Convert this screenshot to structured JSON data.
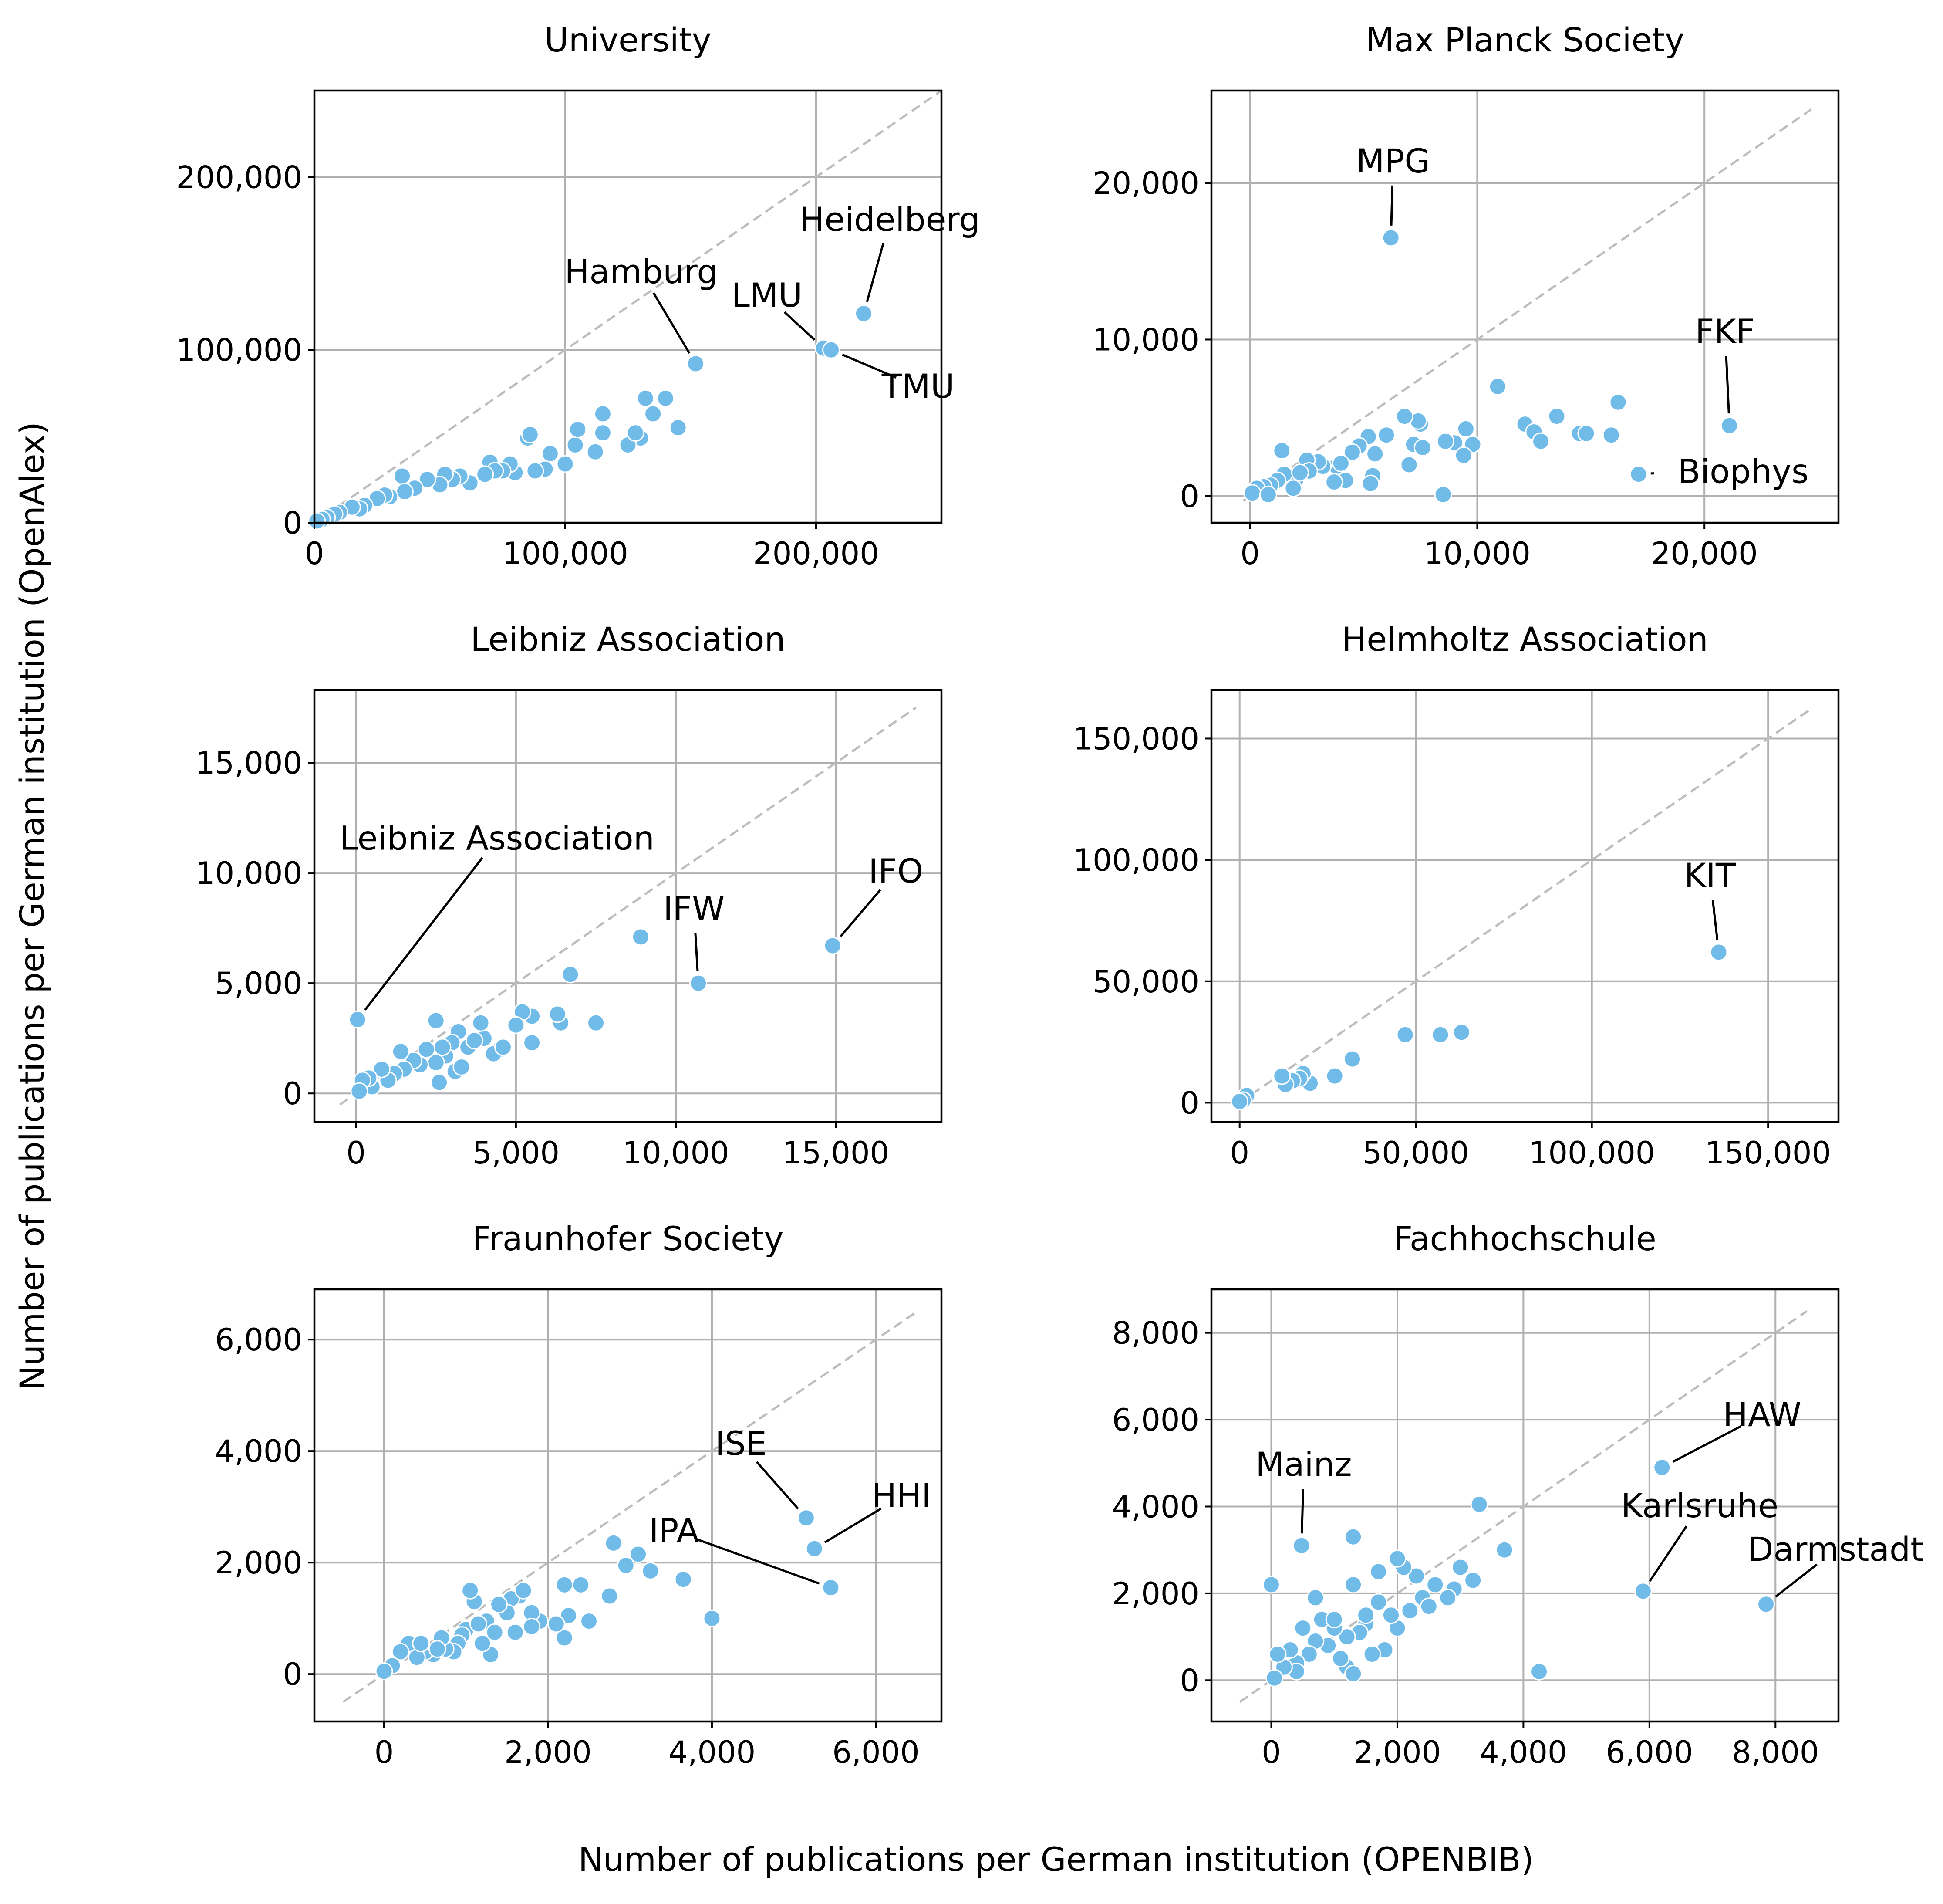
{
  "figure": {
    "xlabel": "Number of publications per German institution (OPENBIB)",
    "ylabel": "Number of publications per German institution (OpenAlex)",
    "point_color": "#71bbe9"
  },
  "chart_data": [
    {
      "type": "scatter",
      "title": "University",
      "xlim": [
        0,
        250000
      ],
      "ylim": [
        0,
        250000
      ],
      "xticks": [
        0,
        100000,
        200000
      ],
      "xtick_labels": [
        "0",
        "100,000",
        "200,000"
      ],
      "yticks": [
        0,
        100000,
        200000
      ],
      "ytick_labels": [
        "0",
        "100,000",
        "200,000"
      ],
      "grid": true,
      "diagonal": [
        0,
        250000
      ],
      "annotations": [
        {
          "label": "Heidelberg",
          "x": 219000,
          "y": 121000
        },
        {
          "label": "Hamburg",
          "x": 152000,
          "y": 92000
        },
        {
          "label": "LMU",
          "x": 203000,
          "y": 101000
        },
        {
          "label": "TMU",
          "x": 206000,
          "y": 100000
        }
      ],
      "points": [
        [
          219000,
          121000
        ],
        [
          152000,
          92000
        ],
        [
          203000,
          101000
        ],
        [
          206000,
          100000
        ],
        [
          140000,
          72000
        ],
        [
          132000,
          72000
        ],
        [
          135000,
          63000
        ],
        [
          130000,
          49000
        ],
        [
          145000,
          55000
        ],
        [
          125000,
          45000
        ],
        [
          128000,
          52000
        ],
        [
          115000,
          63000
        ],
        [
          112000,
          41000
        ],
        [
          115000,
          52000
        ],
        [
          104000,
          45000
        ],
        [
          105000,
          54000
        ],
        [
          100000,
          34000
        ],
        [
          94000,
          40000
        ],
        [
          92000,
          31000
        ],
        [
          88000,
          30000
        ],
        [
          85000,
          49000
        ],
        [
          86000,
          51000
        ],
        [
          80000,
          29000
        ],
        [
          78000,
          34000
        ],
        [
          75000,
          30000
        ],
        [
          70000,
          35000
        ],
        [
          72000,
          30000
        ],
        [
          68000,
          28000
        ],
        [
          62000,
          23000
        ],
        [
          58000,
          27000
        ],
        [
          55000,
          25000
        ],
        [
          52000,
          28000
        ],
        [
          50000,
          22000
        ],
        [
          45000,
          25000
        ],
        [
          40000,
          20000
        ],
        [
          35000,
          27000
        ],
        [
          36000,
          18000
        ],
        [
          30000,
          15000
        ],
        [
          28000,
          16000
        ],
        [
          25000,
          14000
        ],
        [
          20000,
          10000
        ],
        [
          18000,
          8000
        ],
        [
          15000,
          9000
        ],
        [
          10000,
          6000
        ],
        [
          8000,
          5000
        ],
        [
          5000,
          3000
        ],
        [
          3000,
          2000
        ],
        [
          1000,
          1000
        ]
      ]
    },
    {
      "type": "scatter",
      "title": "Max Planck Society",
      "xlim": [
        -1700,
        25900
      ],
      "ylim": [
        -1700,
        25900
      ],
      "xticks": [
        0,
        10000,
        20000
      ],
      "xtick_labels": [
        "0",
        "10,000",
        "20,000"
      ],
      "yticks": [
        0,
        10000,
        20000
      ],
      "ytick_labels": [
        "0",
        "10,000",
        "20,000"
      ],
      "grid": true,
      "diagonal": [
        -300,
        24700
      ],
      "annotations": [
        {
          "label": "MPG",
          "x": 6200,
          "y": 16500
        },
        {
          "label": "FKF",
          "x": 21100,
          "y": 4500
        },
        {
          "label": "Biophys",
          "x": 17100,
          "y": 1400
        }
      ],
      "points": [
        [
          6200,
          16500
        ],
        [
          21100,
          4500
        ],
        [
          17100,
          1400
        ],
        [
          10900,
          7000
        ],
        [
          16200,
          6000
        ],
        [
          13500,
          5100
        ],
        [
          12100,
          4600
        ],
        [
          12500,
          4100
        ],
        [
          12800,
          3500
        ],
        [
          14500,
          4000
        ],
        [
          14800,
          4000
        ],
        [
          15900,
          3900
        ],
        [
          9500,
          4300
        ],
        [
          9800,
          3300
        ],
        [
          9000,
          3400
        ],
        [
          9400,
          2600
        ],
        [
          8600,
          3500
        ],
        [
          8500,
          100
        ],
        [
          7500,
          4600
        ],
        [
          7400,
          4800
        ],
        [
          6800,
          5100
        ],
        [
          7200,
          3300
        ],
        [
          7600,
          3100
        ],
        [
          7000,
          2000
        ],
        [
          6000,
          3900
        ],
        [
          5500,
          2700
        ],
        [
          5200,
          3800
        ],
        [
          5400,
          1300
        ],
        [
          5300,
          800
        ],
        [
          4800,
          3200
        ],
        [
          4500,
          2800
        ],
        [
          4200,
          1000
        ],
        [
          3800,
          1900
        ],
        [
          3700,
          900
        ],
        [
          3200,
          1900
        ],
        [
          3000,
          2200
        ],
        [
          2500,
          2300
        ],
        [
          2600,
          1600
        ],
        [
          2000,
          1000
        ],
        [
          1900,
          500
        ],
        [
          1500,
          1400
        ],
        [
          1400,
          2900
        ],
        [
          1200,
          1000
        ],
        [
          900,
          700
        ],
        [
          600,
          600
        ],
        [
          300,
          500
        ],
        [
          100,
          200
        ],
        [
          800,
          100
        ],
        [
          2200,
          1500
        ],
        [
          4000,
          2100
        ]
      ]
    },
    {
      "type": "scatter",
      "title": "Leibniz Association",
      "xlim": [
        -1300,
        18300
      ],
      "ylim": [
        -1300,
        18300
      ],
      "xticks": [
        0,
        5000,
        10000,
        15000
      ],
      "xtick_labels": [
        "0",
        "5,000",
        "10,000",
        "15,000"
      ],
      "yticks": [
        0,
        5000,
        10000,
        15000
      ],
      "ytick_labels": [
        "0",
        "5,000",
        "10,000",
        "15,000"
      ],
      "grid": true,
      "diagonal": [
        -500,
        17500
      ],
      "annotations": [
        {
          "label": "Leibniz Association",
          "x": 50,
          "y": 3350
        },
        {
          "label": "IFW",
          "x": 10700,
          "y": 5000
        },
        {
          "label": "IFO",
          "x": 14900,
          "y": 6700
        }
      ],
      "points": [
        [
          50,
          3350
        ],
        [
          10700,
          5000
        ],
        [
          14900,
          6700
        ],
        [
          8900,
          7100
        ],
        [
          6700,
          5400
        ],
        [
          7500,
          3200
        ],
        [
          6400,
          3200
        ],
        [
          6300,
          3600
        ],
        [
          5500,
          2300
        ],
        [
          5500,
          3500
        ],
        [
          5200,
          3700
        ],
        [
          5000,
          3100
        ],
        [
          4500,
          2000
        ],
        [
          4300,
          1800
        ],
        [
          4000,
          2500
        ],
        [
          3900,
          3200
        ],
        [
          3500,
          2100
        ],
        [
          3200,
          2800
        ],
        [
          3100,
          1000
        ],
        [
          3000,
          2300
        ],
        [
          2800,
          1700
        ],
        [
          2700,
          2100
        ],
        [
          2500,
          3300
        ],
        [
          2500,
          1400
        ],
        [
          2600,
          500
        ],
        [
          2200,
          2000
        ],
        [
          2000,
          1300
        ],
        [
          1800,
          1500
        ],
        [
          1500,
          1100
        ],
        [
          1400,
          1900
        ],
        [
          1200,
          900
        ],
        [
          1000,
          600
        ],
        [
          800,
          1100
        ],
        [
          500,
          300
        ],
        [
          400,
          700
        ],
        [
          200,
          600
        ],
        [
          100,
          100
        ],
        [
          3300,
          1200
        ],
        [
          4600,
          2100
        ],
        [
          3700,
          2400
        ]
      ]
    },
    {
      "type": "scatter",
      "title": "Helmholtz Association",
      "xlim": [
        -8000,
        170000
      ],
      "ylim": [
        -8000,
        170000
      ],
      "xticks": [
        0,
        50000,
        100000,
        150000
      ],
      "xtick_labels": [
        "0",
        "50,000",
        "100,000",
        "150,000"
      ],
      "yticks": [
        0,
        50000,
        100000,
        150000
      ],
      "ytick_labels": [
        "0",
        "50,000",
        "100,000",
        "150,000"
      ],
      "grid": true,
      "diagonal": [
        0,
        162000
      ],
      "annotations": [
        {
          "label": "KIT",
          "x": 136000,
          "y": 62000
        }
      ],
      "points": [
        [
          136000,
          62000
        ],
        [
          63000,
          29000
        ],
        [
          57000,
          28000
        ],
        [
          47000,
          28000
        ],
        [
          32000,
          18000
        ],
        [
          27000,
          11000
        ],
        [
          20000,
          8000
        ],
        [
          18000,
          12000
        ],
        [
          17000,
          10000
        ],
        [
          15000,
          9000
        ],
        [
          13000,
          7500
        ],
        [
          12000,
          11000
        ],
        [
          2000,
          3000
        ],
        [
          1000,
          1000
        ],
        [
          0,
          500
        ]
      ]
    },
    {
      "type": "scatter",
      "title": "Fraunhofer Society",
      "xlim": [
        -850,
        6800
      ],
      "ylim": [
        -850,
        6900
      ],
      "xticks": [
        0,
        2000,
        4000,
        6000
      ],
      "xtick_labels": [
        "0",
        "2,000",
        "4,000",
        "6,000"
      ],
      "yticks": [
        0,
        2000,
        4000,
        6000
      ],
      "ytick_labels": [
        "0",
        "2,000",
        "4,000",
        "6,000"
      ],
      "grid": true,
      "diagonal": [
        -500,
        6500
      ],
      "annotations": [
        {
          "label": "ISE",
          "x": 5150,
          "y": 2800
        },
        {
          "label": "HHI",
          "x": 5250,
          "y": 2250
        },
        {
          "label": "IPA",
          "x": 5450,
          "y": 1550
        }
      ],
      "points": [
        [
          5150,
          2800
        ],
        [
          5250,
          2250
        ],
        [
          5450,
          1550
        ],
        [
          4000,
          1000
        ],
        [
          3650,
          1700
        ],
        [
          3250,
          1850
        ],
        [
          3100,
          2150
        ],
        [
          2950,
          1950
        ],
        [
          2800,
          2350
        ],
        [
          2750,
          1400
        ],
        [
          2500,
          950
        ],
        [
          2400,
          1600
        ],
        [
          2250,
          1050
        ],
        [
          2200,
          1600
        ],
        [
          2200,
          650
        ],
        [
          2100,
          900
        ],
        [
          1900,
          950
        ],
        [
          1800,
          1100
        ],
        [
          1800,
          850
        ],
        [
          1650,
          1400
        ],
        [
          1600,
          750
        ],
        [
          1550,
          1350
        ],
        [
          1500,
          1100
        ],
        [
          1400,
          1250
        ],
        [
          1300,
          350
        ],
        [
          1250,
          950
        ],
        [
          1200,
          550
        ],
        [
          1100,
          1300
        ],
        [
          1050,
          1500
        ],
        [
          1000,
          800
        ],
        [
          950,
          700
        ],
        [
          900,
          550
        ],
        [
          850,
          400
        ],
        [
          750,
          450
        ],
        [
          700,
          650
        ],
        [
          600,
          350
        ],
        [
          500,
          400
        ],
        [
          400,
          300
        ],
        [
          300,
          550
        ],
        [
          200,
          400
        ],
        [
          100,
          150
        ],
        [
          0,
          50
        ],
        [
          1350,
          750
        ],
        [
          1700,
          1500
        ],
        [
          1150,
          900
        ],
        [
          650,
          450
        ],
        [
          450,
          550
        ]
      ]
    },
    {
      "type": "scatter",
      "title": "Fachhochschule",
      "xlim": [
        -950,
        9000
      ],
      "ylim": [
        -950,
        9000
      ],
      "xticks": [
        0,
        2000,
        4000,
        6000,
        8000
      ],
      "xtick_labels": [
        "0",
        "2,000",
        "4,000",
        "6,000",
        "8,000"
      ],
      "yticks": [
        0,
        2000,
        4000,
        6000,
        8000
      ],
      "ytick_labels": [
        "0",
        "2,000",
        "4,000",
        "6,000",
        "8,000"
      ],
      "grid": true,
      "diagonal": [
        -500,
        8500
      ],
      "annotations": [
        {
          "label": "HAW",
          "x": 6200,
          "y": 4900
        },
        {
          "label": "Mainz",
          "x": 480,
          "y": 3100
        },
        {
          "label": "Karlsruhe",
          "x": 5900,
          "y": 2050
        },
        {
          "label": "Darmstadt",
          "x": 7850,
          "y": 1750
        }
      ],
      "points": [
        [
          6200,
          4900
        ],
        [
          480,
          3100
        ],
        [
          5900,
          2050
        ],
        [
          7850,
          1750
        ],
        [
          4250,
          200
        ],
        [
          3700,
          3000
        ],
        [
          3300,
          4050
        ],
        [
          3200,
          2300
        ],
        [
          3000,
          2600
        ],
        [
          2900,
          2100
        ],
        [
          2800,
          1900
        ],
        [
          2600,
          2200
        ],
        [
          2400,
          1900
        ],
        [
          2300,
          2400
        ],
        [
          2100,
          2600
        ],
        [
          2000,
          2800
        ],
        [
          2000,
          1200
        ],
        [
          1900,
          1500
        ],
        [
          1800,
          700
        ],
        [
          1700,
          1800
        ],
        [
          1700,
          2500
        ],
        [
          1600,
          600
        ],
        [
          1500,
          1300
        ],
        [
          1400,
          1100
        ],
        [
          1300,
          2200
        ],
        [
          1300,
          3300
        ],
        [
          1200,
          300
        ],
        [
          1200,
          1000
        ],
        [
          1100,
          500
        ],
        [
          1000,
          1200
        ],
        [
          900,
          800
        ],
        [
          800,
          1400
        ],
        [
          700,
          1900
        ],
        [
          700,
          900
        ],
        [
          600,
          600
        ],
        [
          500,
          1200
        ],
        [
          400,
          400
        ],
        [
          400,
          200
        ],
        [
          300,
          700
        ],
        [
          200,
          300
        ],
        [
          100,
          600
        ],
        [
          50,
          50
        ],
        [
          0,
          2200
        ],
        [
          1500,
          1500
        ],
        [
          1000,
          1400
        ],
        [
          2200,
          1600
        ],
        [
          1300,
          150
        ],
        [
          2500,
          1700
        ]
      ]
    }
  ]
}
